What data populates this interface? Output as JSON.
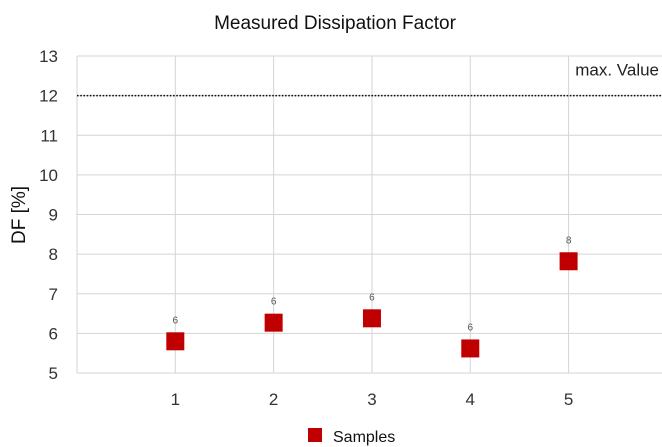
{
  "chart_data": {
    "type": "scatter",
    "title": "Measured Dissipation Factor",
    "xlabel": "",
    "ylabel": "DF [%]",
    "x": [
      1,
      2,
      3,
      4,
      5
    ],
    "xticks": [
      "1",
      "2",
      "3",
      "4",
      "5"
    ],
    "xlim": [
      0,
      5.95
    ],
    "ylim": [
      5,
      13
    ],
    "yticks": [
      5,
      6,
      7,
      8,
      9,
      10,
      11,
      12,
      13
    ],
    "grid": true,
    "series": [
      {
        "name": "Samples",
        "values": [
          5.8,
          6.27,
          6.38,
          5.62,
          7.82
        ],
        "labels": [
          "6",
          "6",
          "6",
          "6",
          "8"
        ],
        "color": "#c00000",
        "marker": "square"
      }
    ],
    "reference_line": {
      "label": "max. Value",
      "value": 12,
      "style": "dotted"
    },
    "legend": {
      "position": "bottom-center"
    }
  }
}
